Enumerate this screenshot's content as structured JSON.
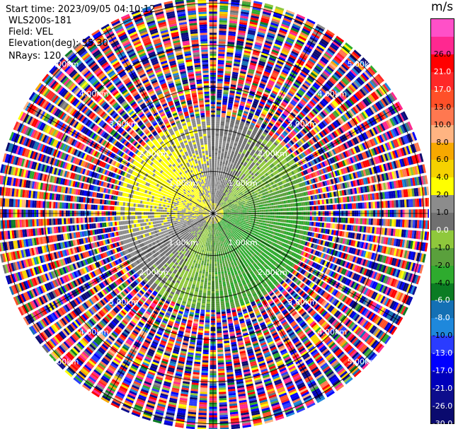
{
  "header": {
    "start_time": "Start time: 2023/09/05 04:10:12",
    "station": "WLS200s-181",
    "field": "Field: VEL",
    "elevation": "Elevation(deg): 35.30",
    "nrays": "NRays: 120"
  },
  "chart_data": {
    "type": "heatmap",
    "projection": "polar-ppi",
    "field": "VEL",
    "units": "m/s",
    "n_rays": 120,
    "range_rings_km": [
      1.0,
      2.0,
      3.0,
      4.0,
      5.0
    ],
    "ring_labels": [
      "1.00km",
      "2.00km",
      "3.00km",
      "4.00km",
      "5.00km"
    ],
    "max_range_km": 5.1,
    "clean_data_range_km": 2.3,
    "grid_azimuths_deg": [
      0,
      30,
      60,
      90,
      120,
      150,
      180,
      210,
      240,
      270,
      300,
      330
    ],
    "colorbar": {
      "unit": "m/s",
      "levels": [
        -30,
        -26,
        -21,
        -17,
        -13,
        -10,
        -8,
        -6,
        -4,
        -2,
        -1,
        0,
        1,
        2,
        4,
        6,
        8,
        10,
        13,
        17,
        21,
        26,
        30
      ],
      "tick_labels": [
        "26.0",
        "21.0",
        "17.0",
        "13.0",
        "10.0",
        "8.0",
        "6.0",
        "4.0",
        "2.0",
        "1.0",
        "0.0",
        "-1.0",
        "-2.0",
        "-4.0",
        "-6.0",
        "-8.0",
        "-10.0",
        "-13.0",
        "-17.0",
        "-21.0",
        "-26.0",
        "-30.0"
      ],
      "colors": [
        "#0a0a6e",
        "#0d0d8c",
        "#0000ba",
        "#0000ff",
        "#2a3cff",
        "#1e88dc",
        "#1470b4",
        "#0b7c23",
        "#2eab2e",
        "#5aa03c",
        "#8fc83c",
        "#707070",
        "#8c8c8c",
        "#ffff00",
        "#f5d200",
        "#f7a800",
        "#ffb482",
        "#ff7850",
        "#ff5028",
        "#ff2828",
        "#ff0000",
        "#ff2890",
        "#ff50c8"
      ]
    }
  }
}
